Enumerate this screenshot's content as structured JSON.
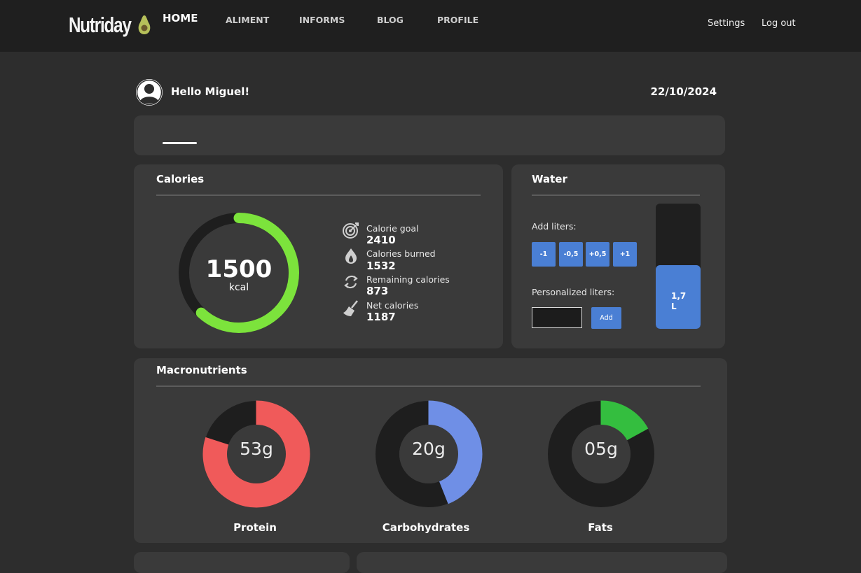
{
  "header": {
    "logo_text": "Nutriday",
    "links": [
      "Settings",
      "Log out"
    ]
  },
  "greeting": "Hello Miguel!",
  "date": "22/10/2024",
  "tabs": [
    "HOME",
    "ALIMENT",
    "INFORMS",
    "BLOG",
    "PROFILE"
  ],
  "active_tab": "HOME",
  "calories": {
    "title": "Calories",
    "ring_value": "1500",
    "ring_unit": "kcal",
    "ring_progress": 0.62,
    "stats": [
      {
        "icon": "target-icon",
        "label": "Calorie goal",
        "value": "2410"
      },
      {
        "icon": "flame-icon",
        "label": "Calories burned",
        "value": "1532"
      },
      {
        "icon": "refresh-icon",
        "label": "Remaining calories",
        "value": "873"
      },
      {
        "icon": "broom-icon",
        "label": "Net calories",
        "value": "1187"
      }
    ]
  },
  "water": {
    "title": "Water",
    "add_label": "Add liters:",
    "buttons": [
      "-1",
      "-0,5",
      "+0,5",
      "+1"
    ],
    "personalized_label": "Personalized liters:",
    "input_value": "",
    "add_button": "Add",
    "level_text_value": "1,7",
    "level_text_unit": "L",
    "level_fraction": 0.51
  },
  "macros": {
    "title": "Macronutrients",
    "items": [
      {
        "name": "Protein",
        "value": "53g",
        "fraction": 0.8,
        "color": "#f05a5a"
      },
      {
        "name": "Carbohydrates",
        "value": "20g",
        "fraction": 0.44,
        "color": "#6f8fe6"
      },
      {
        "name": "Fats",
        "value": "05g",
        "fraction": 0.17,
        "color": "#34be3f"
      }
    ]
  },
  "colors": {
    "accent_blue": "#4a7fd4",
    "calorie_green": "#7ce33c",
    "ring_track": "#1e1e1e",
    "card_bg": "#3a3a3a"
  }
}
